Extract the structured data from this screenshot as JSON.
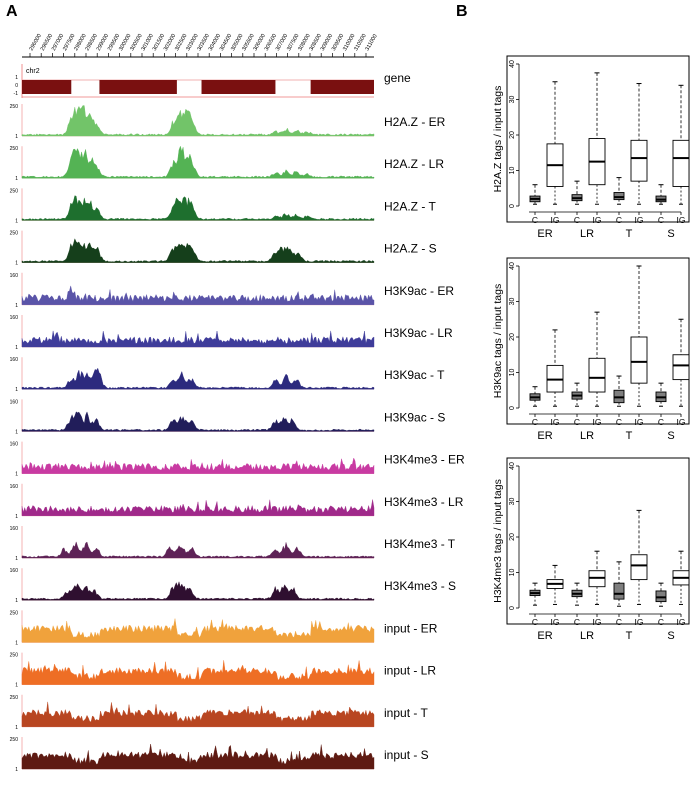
{
  "panels": {
    "a_label": "A",
    "b_label": "B"
  },
  "chart_data": [
    {
      "type": "area",
      "panel": "A",
      "chromosome": "chr2",
      "coordinate_ticks": [
        "296000",
        "296500",
        "297000",
        "297500",
        "298000",
        "298500",
        "299000",
        "299500",
        "300000",
        "300500",
        "301000",
        "301500",
        "302000",
        "302500",
        "303000",
        "303500",
        "304000",
        "304500",
        "305000",
        "305500",
        "306000",
        "306500",
        "307000",
        "307500",
        "308000",
        "308500",
        "309000",
        "309500",
        "310000",
        "310500",
        "311000"
      ],
      "gene_track": {
        "label": "gene",
        "y_ticks": [
          "1",
          "0",
          "-1"
        ],
        "color": "#7a1010",
        "exons": [
          [
            0.0,
            0.14
          ],
          [
            0.22,
            0.44
          ],
          [
            0.51,
            0.72
          ],
          [
            0.82,
            1.0
          ]
        ]
      },
      "tracks": [
        {
          "label": "H2A.Z - ER",
          "ymax": "250",
          "ymin": "1",
          "color": "#72c469",
          "style": "H2AZ",
          "peaks": [
            [
              0.14,
              0.45
            ],
            [
              0.155,
              0.75
            ],
            [
              0.175,
              0.8
            ],
            [
              0.195,
              0.55
            ],
            [
              0.215,
              0.3
            ],
            [
              0.43,
              0.45
            ],
            [
              0.45,
              0.85
            ],
            [
              0.47,
              0.7
            ],
            [
              0.485,
              0.35
            ],
            [
              0.72,
              0.12
            ],
            [
              0.75,
              0.2
            ],
            [
              0.78,
              0.18
            ],
            [
              0.81,
              0.1
            ]
          ]
        },
        {
          "label": "H2A.Z - LR",
          "ymax": "250",
          "ymin": "1",
          "color": "#54b354",
          "style": "H2AZ",
          "peaks": [
            [
              0.14,
              0.5
            ],
            [
              0.155,
              0.8
            ],
            [
              0.175,
              0.85
            ],
            [
              0.195,
              0.6
            ],
            [
              0.215,
              0.32
            ],
            [
              0.43,
              0.5
            ],
            [
              0.45,
              0.9
            ],
            [
              0.47,
              0.72
            ],
            [
              0.485,
              0.35
            ],
            [
              0.72,
              0.14
            ],
            [
              0.75,
              0.22
            ],
            [
              0.78,
              0.2
            ],
            [
              0.81,
              0.12
            ]
          ]
        },
        {
          "label": "H2A.Z - T",
          "ymax": "250",
          "ymin": "1",
          "color": "#1e6f2e",
          "style": "H2AZ",
          "peaks": [
            [
              0.14,
              0.4
            ],
            [
              0.155,
              0.6
            ],
            [
              0.175,
              0.55
            ],
            [
              0.195,
              0.5
            ],
            [
              0.215,
              0.35
            ],
            [
              0.43,
              0.5
            ],
            [
              0.45,
              0.8
            ],
            [
              0.47,
              0.6
            ],
            [
              0.485,
              0.3
            ],
            [
              0.72,
              0.1
            ],
            [
              0.75,
              0.18
            ],
            [
              0.78,
              0.15
            ],
            [
              0.81,
              0.1
            ]
          ]
        },
        {
          "label": "H2A.Z - S",
          "ymax": "250",
          "ymin": "1",
          "color": "#153f1b",
          "style": "H2AZ",
          "peaks": [
            [
              0.14,
              0.45
            ],
            [
              0.155,
              0.65
            ],
            [
              0.175,
              0.6
            ],
            [
              0.195,
              0.5
            ],
            [
              0.215,
              0.4
            ],
            [
              0.43,
              0.45
            ],
            [
              0.45,
              0.55
            ],
            [
              0.47,
              0.5
            ],
            [
              0.485,
              0.35
            ],
            [
              0.72,
              0.3
            ],
            [
              0.74,
              0.45
            ],
            [
              0.76,
              0.4
            ],
            [
              0.785,
              0.3
            ]
          ]
        },
        {
          "label": "H3K9ac - ER",
          "ymax": "160",
          "ymin": "1",
          "color": "#5a54a8",
          "style": "flat",
          "peaks": [
            [
              0.14,
              0.3
            ]
          ]
        },
        {
          "label": "H3K9ac - LR",
          "ymax": "160",
          "ymin": "1",
          "color": "#3f3c9a",
          "style": "flat",
          "peaks": []
        },
        {
          "label": "H3K9ac - T",
          "ymax": "160",
          "ymin": "1",
          "color": "#2c2a7e",
          "style": "H2AZ",
          "peaks": [
            [
              0.14,
              0.35
            ],
            [
              0.165,
              0.55
            ],
            [
              0.19,
              0.5
            ],
            [
              0.215,
              0.9
            ],
            [
              0.43,
              0.3
            ],
            [
              0.455,
              0.45
            ],
            [
              0.48,
              0.3
            ],
            [
              0.72,
              0.3
            ],
            [
              0.75,
              0.4
            ],
            [
              0.78,
              0.3
            ]
          ]
        },
        {
          "label": "H3K9ac - S",
          "ymax": "160",
          "ymin": "1",
          "color": "#211d5a",
          "style": "H2AZ",
          "peaks": [
            [
              0.14,
              0.45
            ],
            [
              0.16,
              0.6
            ],
            [
              0.185,
              0.5
            ],
            [
              0.21,
              0.4
            ],
            [
              0.43,
              0.35
            ],
            [
              0.455,
              0.5
            ],
            [
              0.48,
              0.35
            ],
            [
              0.72,
              0.35
            ],
            [
              0.745,
              0.45
            ],
            [
              0.77,
              0.35
            ]
          ]
        },
        {
          "label": "H3K4me3 - ER",
          "ymax": "160",
          "ymin": "1",
          "color": "#c83aa2",
          "style": "flat",
          "peaks": []
        },
        {
          "label": "H3K4me3 - LR",
          "ymax": "160",
          "ymin": "1",
          "color": "#a0298a",
          "style": "flat",
          "peaks": []
        },
        {
          "label": "H3K4me3 - T",
          "ymax": "160",
          "ymin": "1",
          "color": "#5e2256",
          "style": "H2AZ",
          "peaks": [
            [
              0.12,
              0.25
            ],
            [
              0.15,
              0.45
            ],
            [
              0.18,
              0.5
            ],
            [
              0.21,
              0.35
            ],
            [
              0.42,
              0.3
            ],
            [
              0.45,
              0.45
            ],
            [
              0.48,
              0.35
            ],
            [
              0.72,
              0.3
            ],
            [
              0.75,
              0.45
            ],
            [
              0.78,
              0.35
            ]
          ]
        },
        {
          "label": "H3K4me3 - S",
          "ymax": "160",
          "ymin": "1",
          "color": "#2f0f30",
          "style": "H2AZ",
          "peaks": [
            [
              0.13,
              0.3
            ],
            [
              0.155,
              0.5
            ],
            [
              0.18,
              0.45
            ],
            [
              0.205,
              0.3
            ],
            [
              0.43,
              0.45
            ],
            [
              0.45,
              0.6
            ],
            [
              0.475,
              0.4
            ],
            [
              0.72,
              0.35
            ],
            [
              0.745,
              0.5
            ],
            [
              0.77,
              0.35
            ]
          ]
        },
        {
          "label": "input - ER",
          "ymax": "250",
          "ymin": "1",
          "color": "#f0a23c",
          "style": "input",
          "peaks": []
        },
        {
          "label": "input - LR",
          "ymax": "250",
          "ymin": "1",
          "color": "#ee6e25",
          "style": "input",
          "peaks": []
        },
        {
          "label": "input - T",
          "ymax": "250",
          "ymin": "1",
          "color": "#b84621",
          "style": "input",
          "peaks": []
        },
        {
          "label": "input - S",
          "ymax": "250",
          "ymin": "1",
          "color": "#5e1a12",
          "style": "input",
          "peaks": []
        }
      ]
    },
    {
      "type": "box",
      "panel": "B",
      "ylabel": "H2A.Z tags / input tags",
      "ylim": [
        0,
        40
      ],
      "yticks": [
        "0",
        "10",
        "20",
        "30",
        "40"
      ],
      "groups": [
        "ER",
        "LR",
        "T",
        "S"
      ],
      "box_labels": [
        "C",
        "IG"
      ],
      "boxes": [
        {
          "group": "ER",
          "type": "C",
          "whisker_low": 0.5,
          "q1": 1.2,
          "median": 2.0,
          "q3": 2.8,
          "whisker_high": 6.0,
          "fill": "#7f7f7f"
        },
        {
          "group": "ER",
          "type": "IG",
          "whisker_low": 0.5,
          "q1": 5.5,
          "median": 11.5,
          "q3": 17.5,
          "whisker_high": 35.0,
          "fill": "#ffffff"
        },
        {
          "group": "LR",
          "type": "C",
          "whisker_low": 0.5,
          "q1": 1.5,
          "median": 2.2,
          "q3": 3.2,
          "whisker_high": 7.0,
          "fill": "#7f7f7f"
        },
        {
          "group": "LR",
          "type": "IG",
          "whisker_low": 0.5,
          "q1": 6.0,
          "median": 12.5,
          "q3": 19.0,
          "whisker_high": 37.5,
          "fill": "#ffffff"
        },
        {
          "group": "T",
          "type": "C",
          "whisker_low": 0.5,
          "q1": 1.8,
          "median": 2.5,
          "q3": 3.8,
          "whisker_high": 8.0,
          "fill": "#7f7f7f"
        },
        {
          "group": "T",
          "type": "IG",
          "whisker_low": 0.5,
          "q1": 7.0,
          "median": 13.5,
          "q3": 18.5,
          "whisker_high": 34.5,
          "fill": "#ffffff"
        },
        {
          "group": "S",
          "type": "C",
          "whisker_low": 0.5,
          "q1": 1.2,
          "median": 1.8,
          "q3": 2.8,
          "whisker_high": 6.0,
          "fill": "#7f7f7f"
        },
        {
          "group": "S",
          "type": "IG",
          "whisker_low": 0.5,
          "q1": 5.5,
          "median": 13.5,
          "q3": 18.5,
          "whisker_high": 34.0,
          "fill": "#ffffff"
        }
      ]
    },
    {
      "type": "box",
      "panel": "B",
      "ylabel": "H3K9ac tags / input tags",
      "ylim": [
        0,
        40
      ],
      "yticks": [
        "0",
        "10",
        "20",
        "30",
        "40"
      ],
      "groups": [
        "ER",
        "LR",
        "T",
        "S"
      ],
      "box_labels": [
        "C",
        "IG"
      ],
      "boxes": [
        {
          "group": "ER",
          "type": "C",
          "whisker_low": 0.5,
          "q1": 2.2,
          "median": 3.0,
          "q3": 4.0,
          "whisker_high": 6.0,
          "fill": "#7f7f7f"
        },
        {
          "group": "ER",
          "type": "IG",
          "whisker_low": 0.5,
          "q1": 4.5,
          "median": 8.0,
          "q3": 12.0,
          "whisker_high": 22.0,
          "fill": "#ffffff"
        },
        {
          "group": "LR",
          "type": "C",
          "whisker_low": 0.5,
          "q1": 2.5,
          "median": 3.5,
          "q3": 4.5,
          "whisker_high": 7.0,
          "fill": "#7f7f7f"
        },
        {
          "group": "LR",
          "type": "IG",
          "whisker_low": 0.5,
          "q1": 4.5,
          "median": 8.5,
          "q3": 14.0,
          "whisker_high": 27.0,
          "fill": "#ffffff"
        },
        {
          "group": "T",
          "type": "C",
          "whisker_low": 0.5,
          "q1": 1.5,
          "median": 3.0,
          "q3": 5.0,
          "whisker_high": 9.0,
          "fill": "#7f7f7f"
        },
        {
          "group": "T",
          "type": "IG",
          "whisker_low": 0.5,
          "q1": 7.0,
          "median": 13.0,
          "q3": 20.0,
          "whisker_high": 40.0,
          "fill": "#ffffff"
        },
        {
          "group": "S",
          "type": "C",
          "whisker_low": 0.5,
          "q1": 1.8,
          "median": 3.0,
          "q3": 4.5,
          "whisker_high": 7.0,
          "fill": "#7f7f7f"
        },
        {
          "group": "S",
          "type": "IG",
          "whisker_low": 0.5,
          "q1": 8.0,
          "median": 12.0,
          "q3": 15.0,
          "whisker_high": 25.0,
          "fill": "#ffffff"
        }
      ]
    },
    {
      "type": "box",
      "panel": "B",
      "ylabel": "H3K4me3 tags / input tags",
      "ylim": [
        0,
        40
      ],
      "yticks": [
        "0",
        "10",
        "20",
        "30",
        "40"
      ],
      "groups": [
        "ER",
        "LR",
        "T",
        "S"
      ],
      "box_labels": [
        "C",
        "IG"
      ],
      "boxes": [
        {
          "group": "ER",
          "type": "C",
          "whisker_low": 0.8,
          "q1": 3.5,
          "median": 4.2,
          "q3": 5.0,
          "whisker_high": 7.0,
          "fill": "#7f7f7f"
        },
        {
          "group": "ER",
          "type": "IG",
          "whisker_low": 1.0,
          "q1": 5.5,
          "median": 6.8,
          "q3": 8.0,
          "whisker_high": 12.0,
          "fill": "#ffffff"
        },
        {
          "group": "LR",
          "type": "C",
          "whisker_low": 0.8,
          "q1": 3.2,
          "median": 4.0,
          "q3": 5.0,
          "whisker_high": 7.0,
          "fill": "#7f7f7f"
        },
        {
          "group": "LR",
          "type": "IG",
          "whisker_low": 1.0,
          "q1": 6.0,
          "median": 8.5,
          "q3": 10.5,
          "whisker_high": 16.0,
          "fill": "#ffffff"
        },
        {
          "group": "T",
          "type": "C",
          "whisker_low": 0.5,
          "q1": 2.5,
          "median": 4.0,
          "q3": 7.0,
          "whisker_high": 13.0,
          "fill": "#7f7f7f"
        },
        {
          "group": "T",
          "type": "IG",
          "whisker_low": 1.0,
          "q1": 8.0,
          "median": 12.0,
          "q3": 15.0,
          "whisker_high": 27.5,
          "fill": "#ffffff"
        },
        {
          "group": "S",
          "type": "C",
          "whisker_low": 0.5,
          "q1": 1.8,
          "median": 3.0,
          "q3": 4.8,
          "whisker_high": 7.0,
          "fill": "#7f7f7f"
        },
        {
          "group": "S",
          "type": "IG",
          "whisker_low": 1.0,
          "q1": 6.5,
          "median": 8.5,
          "q3": 10.5,
          "whisker_high": 16.0,
          "fill": "#ffffff"
        }
      ]
    }
  ]
}
